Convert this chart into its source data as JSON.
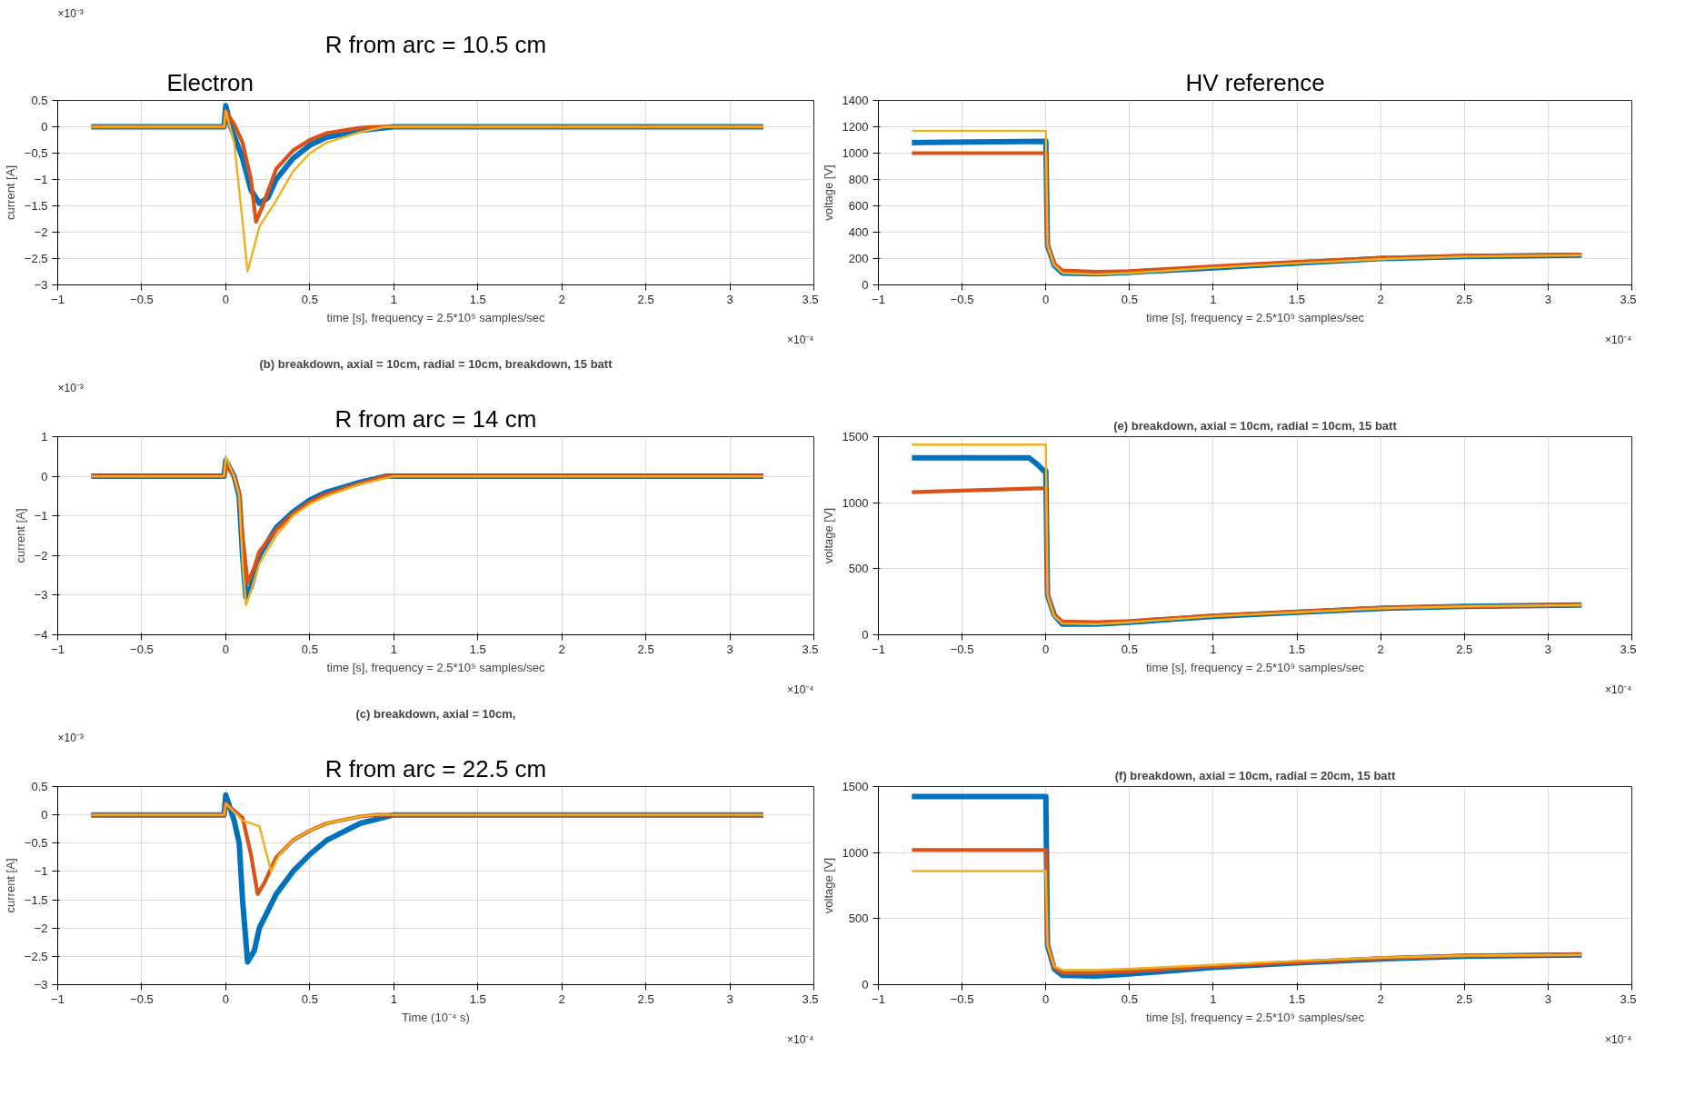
{
  "chart_data": [
    {
      "type": "line",
      "xlabel": "time [s], frequency = 2.5*10⁹ samples/sec",
      "ylabel": "current [A]",
      "annotations": [
        "Electron",
        "R from arc = 10.5 cm",
        "×10⁻³",
        "×10⁻⁴"
      ],
      "xlim": [
        -1,
        3.5
      ],
      "xticks": [
        -1,
        -0.5,
        0,
        0.5,
        1,
        1.5,
        2,
        2.5,
        3,
        3.5
      ],
      "ylim": [
        -3,
        0.5
      ],
      "yticks": [
        -3,
        -2.5,
        -2,
        -1.5,
        -1,
        -0.5,
        0,
        0.5
      ],
      "grid": true,
      "line_style": "solid",
      "series": [
        {
          "color": "#0072bd",
          "x": [
            -0.8,
            -0.01,
            0,
            0.03,
            0.1,
            0.15,
            0.2,
            0.25,
            0.3,
            0.4,
            0.5,
            0.6,
            0.8,
            1.0,
            3.2
          ],
          "values": [
            0,
            0,
            0.4,
            0,
            -0.6,
            -1.2,
            -1.45,
            -1.35,
            -1.0,
            -0.6,
            -0.35,
            -0.2,
            -0.07,
            0,
            0
          ]
        },
        {
          "color": "#d95319",
          "x": [
            -0.8,
            -0.01,
            0,
            0.05,
            0.1,
            0.15,
            0.18,
            0.22,
            0.3,
            0.4,
            0.5,
            0.6,
            0.8,
            0.9,
            3.2
          ],
          "values": [
            0,
            0,
            0.3,
            0.05,
            -0.3,
            -1.0,
            -1.8,
            -1.5,
            -0.8,
            -0.45,
            -0.25,
            -0.12,
            -0.02,
            0,
            0
          ]
        },
        {
          "color": "#edb120",
          "x": [
            -0.8,
            -0.01,
            0,
            0.05,
            0.1,
            0.13,
            0.2,
            0.3,
            0.4,
            0.5,
            0.6,
            0.8,
            0.95,
            3.2
          ],
          "values": [
            0,
            0,
            0.3,
            -0.3,
            -1.8,
            -2.75,
            -1.9,
            -1.4,
            -0.85,
            -0.5,
            -0.3,
            -0.1,
            0,
            0
          ]
        }
      ]
    },
    {
      "type": "line",
      "title": "(b) breakdown, axial = 10cm, radial = 10cm, breakdown, 15 batt",
      "xlabel": "time [s], frequency = 2.5*10⁹ samples/sec",
      "ylabel": "current [A]",
      "annotations": [
        "R from arc = 14 cm",
        "×10⁻³",
        "×10⁻⁴"
      ],
      "xlim": [
        -1,
        3.5
      ],
      "xticks": [
        -1,
        -0.5,
        0,
        0.5,
        1,
        1.5,
        2,
        2.5,
        3,
        3.5
      ],
      "ylim": [
        -4,
        1
      ],
      "yticks": [
        -4,
        -3,
        -2,
        -1,
        0,
        1
      ],
      "grid": true,
      "line_style": "solid",
      "series": [
        {
          "color": "#0072bd",
          "x": [
            -0.8,
            -0.01,
            0,
            0.05,
            0.08,
            0.1,
            0.12,
            0.15,
            0.2,
            0.3,
            0.4,
            0.5,
            0.6,
            0.8,
            0.95,
            3.2
          ],
          "values": [
            0,
            0,
            0.4,
            0,
            -0.5,
            -2,
            -3.05,
            -2.8,
            -2.0,
            -1.3,
            -0.9,
            -0.6,
            -0.4,
            -0.15,
            0,
            0
          ]
        },
        {
          "color": "#d95319",
          "x": [
            -0.8,
            -0.01,
            0,
            0.05,
            0.08,
            0.1,
            0.13,
            0.17,
            0.2,
            0.3,
            0.4,
            0.5,
            0.6,
            0.8,
            0.95,
            3.2
          ],
          "values": [
            0,
            0,
            0.3,
            0,
            -0.4,
            -1.5,
            -2.7,
            -2.3,
            -1.9,
            -1.35,
            -0.95,
            -0.65,
            -0.45,
            -0.18,
            0,
            0
          ]
        },
        {
          "color": "#edb120",
          "x": [
            -0.8,
            -0.01,
            0,
            0.05,
            0.08,
            0.1,
            0.12,
            0.15,
            0.2,
            0.3,
            0.4,
            0.5,
            0.6,
            0.8,
            1.0,
            3.2
          ],
          "values": [
            0,
            0,
            0.5,
            0,
            -0.5,
            -2.2,
            -3.25,
            -2.9,
            -2.2,
            -1.5,
            -1.0,
            -0.7,
            -0.5,
            -0.2,
            0,
            0
          ]
        }
      ]
    },
    {
      "type": "line",
      "title": "(c) breakdown, axial = 10cm,",
      "xlabel": "Time (10⁻⁴ s)",
      "ylabel": "current [A]",
      "annotations": [
        "R from arc = 22.5 cm",
        "×10⁻³",
        "×10⁻⁴"
      ],
      "xlim": [
        -1,
        3.5
      ],
      "xticks": [
        -1,
        -0.5,
        0,
        0.5,
        1,
        1.5,
        2,
        2.5,
        3,
        3.5
      ],
      "ylim": [
        -3,
        0.5
      ],
      "yticks": [
        -3,
        -2.5,
        -2,
        -1.5,
        -1,
        -0.5,
        0,
        0.5
      ],
      "grid": true,
      "line_style": "solid",
      "series": [
        {
          "color": "#0072bd",
          "x": [
            -0.8,
            -0.01,
            0,
            0.05,
            0.08,
            0.1,
            0.13,
            0.17,
            0.2,
            0.3,
            0.4,
            0.5,
            0.6,
            0.8,
            1.0,
            3.2
          ],
          "values": [
            0,
            0,
            0.35,
            -0.1,
            -0.5,
            -1.5,
            -2.6,
            -2.4,
            -2.0,
            -1.4,
            -1.0,
            -0.7,
            -0.45,
            -0.15,
            0,
            0
          ]
        },
        {
          "color": "#d95319",
          "x": [
            -0.8,
            -0.01,
            0,
            0.1,
            0.15,
            0.19,
            0.23,
            0.3,
            0.4,
            0.5,
            0.6,
            0.8,
            0.9,
            3.2
          ],
          "values": [
            0,
            0,
            0.2,
            -0.05,
            -0.7,
            -1.4,
            -1.2,
            -0.75,
            -0.45,
            -0.28,
            -0.15,
            -0.03,
            0,
            0
          ]
        },
        {
          "color": "#edb120",
          "x": [
            -0.8,
            -0.01,
            0,
            0.1,
            0.2,
            0.27,
            0.32,
            0.4,
            0.5,
            0.6,
            0.8,
            0.9,
            3.2
          ],
          "values": [
            0,
            0,
            0.2,
            -0.1,
            -0.2,
            -1.0,
            -0.7,
            -0.45,
            -0.28,
            -0.15,
            -0.03,
            0,
            0
          ]
        }
      ]
    },
    {
      "type": "line",
      "xlabel": "time [s], frequency = 2.5*10⁹ samples/sec",
      "ylabel": "voltage [V]",
      "annotations": [
        "HV reference",
        "×10⁻⁴"
      ],
      "xlim": [
        -1,
        3.5
      ],
      "xticks": [
        -1,
        -0.5,
        0,
        0.5,
        1,
        1.5,
        2,
        2.5,
        3,
        3.5
      ],
      "ylim": [
        0,
        1400
      ],
      "yticks": [
        0,
        200,
        400,
        600,
        800,
        1000,
        1200,
        1400
      ],
      "grid": true,
      "line_style": "solid",
      "series": [
        {
          "color": "#0072bd",
          "x": [
            -0.8,
            0,
            0.01,
            0.05,
            0.1,
            0.3,
            0.5,
            1,
            1.5,
            2,
            2.5,
            3.2
          ],
          "values": [
            1080,
            1090,
            300,
            150,
            90,
            85,
            95,
            130,
            165,
            200,
            215,
            225
          ]
        },
        {
          "color": "#d95319",
          "x": [
            -0.8,
            0,
            0.01,
            0.05,
            0.1,
            0.3,
            0.5,
            1,
            1.5,
            2,
            2.5,
            3.2
          ],
          "values": [
            1000,
            1000,
            300,
            160,
            110,
            100,
            105,
            140,
            175,
            205,
            220,
            230
          ]
        },
        {
          "color": "#edb120",
          "x": [
            -0.8,
            0,
            0.01,
            0.05,
            0.1,
            0.3,
            0.5,
            1,
            1.5,
            2,
            2.5,
            3.2
          ],
          "values": [
            1170,
            1170,
            300,
            150,
            90,
            80,
            90,
            130,
            165,
            195,
            215,
            225
          ]
        }
      ]
    },
    {
      "type": "line",
      "title": "(e) breakdown, axial = 10cm, radial = 10cm, 15 batt",
      "xlabel": "time [s], frequency = 2.5*10⁹ samples/sec",
      "ylabel": "voltage [V]",
      "annotations": [
        "×10⁻⁴"
      ],
      "xlim": [
        -1,
        3.5
      ],
      "xticks": [
        -1,
        -0.5,
        0,
        0.5,
        1,
        1.5,
        2,
        2.5,
        3,
        3.5
      ],
      "ylim": [
        0,
        1500
      ],
      "yticks": [
        0,
        500,
        1000,
        1500
      ],
      "grid": true,
      "line_style": "solid",
      "series": [
        {
          "color": "#0072bd",
          "x": [
            -0.8,
            -0.1,
            -0.05,
            -0.01,
            0,
            0.01,
            0.05,
            0.1,
            0.3,
            0.5,
            1,
            1.5,
            2,
            2.5,
            3.2
          ],
          "values": [
            1340,
            1340,
            1290,
            1240,
            1240,
            300,
            150,
            80,
            80,
            95,
            140,
            170,
            200,
            215,
            225
          ]
        },
        {
          "color": "#d95319",
          "x": [
            -0.8,
            0,
            0.01,
            0.05,
            0.1,
            0.3,
            0.5,
            1,
            1.5,
            2,
            2.5,
            3.2
          ],
          "values": [
            1080,
            1110,
            300,
            150,
            100,
            95,
            105,
            145,
            175,
            205,
            215,
            225
          ]
        },
        {
          "color": "#edb120",
          "x": [
            -0.8,
            0,
            0.01,
            0.05,
            0.1,
            0.3,
            0.5,
            1,
            1.5,
            2,
            2.5,
            3.2
          ],
          "values": [
            1440,
            1440,
            300,
            140,
            85,
            80,
            95,
            140,
            170,
            200,
            215,
            225
          ]
        }
      ]
    },
    {
      "type": "line",
      "title": "(f) breakdown, axial = 10cm, radial = 20cm, 15 batt",
      "xlabel": "time [s], frequency = 2.5*10⁹ samples/sec",
      "ylabel": "voltage [V]",
      "annotations": [
        "×10⁻⁴"
      ],
      "xlim": [
        -1,
        3.5
      ],
      "xticks": [
        -1,
        -0.5,
        0,
        0.5,
        1,
        1.5,
        2,
        2.5,
        3,
        3.5
      ],
      "ylim": [
        0,
        1500
      ],
      "yticks": [
        0,
        500,
        1000,
        1500
      ],
      "grid": true,
      "line_style": "solid",
      "series": [
        {
          "color": "#0072bd",
          "x": [
            -0.8,
            0,
            0.01,
            0.05,
            0.1,
            0.3,
            0.5,
            1,
            1.5,
            2,
            2.5,
            3.2
          ],
          "values": [
            1425,
            1425,
            300,
            120,
            70,
            65,
            80,
            130,
            165,
            195,
            215,
            225
          ]
        },
        {
          "color": "#d95319",
          "x": [
            -0.8,
            0,
            0.01,
            0.05,
            0.1,
            0.3,
            0.5,
            1,
            1.5,
            2,
            2.5,
            3.2
          ],
          "values": [
            1020,
            1020,
            300,
            130,
            90,
            90,
            100,
            140,
            170,
            200,
            220,
            230
          ]
        },
        {
          "color": "#edb120",
          "x": [
            -0.8,
            0,
            0.01,
            0.05,
            0.1,
            0.3,
            0.5,
            1,
            1.5,
            2,
            2.5,
            3.2
          ],
          "values": [
            860,
            860,
            300,
            140,
            110,
            110,
            120,
            150,
            180,
            205,
            220,
            225
          ]
        }
      ]
    }
  ]
}
